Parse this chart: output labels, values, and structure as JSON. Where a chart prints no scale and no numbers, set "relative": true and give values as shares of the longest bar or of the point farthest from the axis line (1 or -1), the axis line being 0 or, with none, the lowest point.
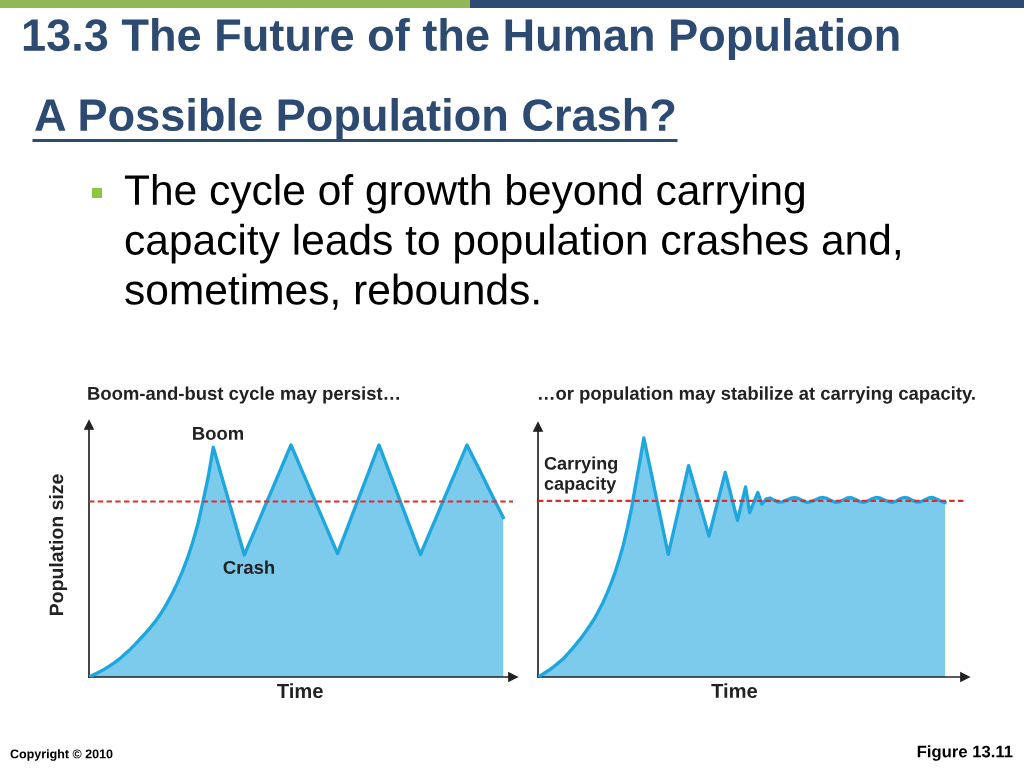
{
  "chart_data": [
    {
      "type": "other",
      "title": "13.3 The Future of the Human Population",
      "subtitle": "A Possible Population Crash?",
      "annotations": [
        "The cycle of growth beyond carrying\ncapacity leads to population crashes and,\nsometimes, rebounds.",
        "Copyright © 2010",
        "Figure 13.11"
      ]
    },
    {
      "type": "area",
      "title": "Boom-and-bust cycle may persist…",
      "xlabel": "Time",
      "ylabel": "Population size",
      "relative": true,
      "categories": [
        null,
        null,
        null,
        null,
        null,
        null,
        null,
        null,
        null,
        null,
        null,
        null,
        null,
        null,
        null,
        null,
        null,
        null,
        null,
        null,
        null,
        null,
        null,
        null,
        null,
        null,
        null,
        null,
        null,
        null,
        null,
        null,
        null,
        null,
        null,
        null,
        null,
        null,
        null,
        null,
        null,
        null,
        null,
        null,
        null,
        null,
        null,
        null,
        null,
        null,
        null,
        null,
        null,
        null,
        null,
        null,
        null,
        null,
        null,
        null,
        null,
        null,
        null,
        null,
        null,
        null,
        null,
        null,
        null,
        null,
        null,
        null,
        null,
        null,
        null,
        null,
        null,
        null,
        null,
        null,
        null
      ],
      "series": [
        {
          "color": "#1ea6df",
          "values": [
            0,
            0.011,
            0.022,
            0.034,
            0.048,
            0.063,
            0.08,
            0.1,
            0.12,
            0.143,
            0.167,
            0.191,
            0.217,
            0.245,
            0.278,
            0.315,
            0.356,
            0.402,
            0.453,
            0.511,
            0.579,
            0.657,
            0.755,
            0.86,
            0.99,
            0.913,
            0.835,
            0.758,
            0.681,
            0.603,
            0.526,
            0.579,
            0.631,
            0.684,
            0.737,
            0.789,
            0.842,
            0.895,
            0.947,
            1.0,
            0.948,
            0.896,
            0.844,
            0.792,
            0.74,
            0.688,
            0.636,
            0.584,
            0.532,
            0.591,
            0.649,
            0.708,
            0.766,
            0.825,
            0.883,
            0.942,
            1.0,
            0.941,
            0.882,
            0.823,
            0.764,
            0.705,
            0.646,
            0.587,
            0.528,
            0.58,
            0.633,
            0.685,
            0.738,
            0.79,
            0.843,
            0.895,
            0.948,
            1.0,
            0.955,
            0.911,
            0.866,
            0.821,
            0.776,
            0.732,
            0.687
          ]
        }
      ],
      "ref_lines": [
        {
          "axis": "y",
          "value": 0.756,
          "color": "#dd2c2c",
          "line_style": "dashed"
        }
      ],
      "annotations": [
        "Boom",
        "Crash"
      ]
    },
    {
      "type": "area",
      "title": "…or population may stabilize at carrying capacity.",
      "xlabel": "Time",
      "relative": true,
      "categories": [
        null,
        null,
        null,
        null,
        null,
        null,
        null,
        null,
        null,
        null,
        null,
        null,
        null,
        null,
        null,
        null,
        null,
        null,
        null,
        null,
        null,
        null,
        null,
        null,
        null,
        null,
        null,
        null,
        null,
        null,
        null,
        null,
        null,
        null,
        null,
        null,
        null,
        null,
        null,
        null,
        null,
        null,
        null,
        null,
        null,
        null,
        null,
        null,
        null,
        null,
        null,
        null,
        null,
        null,
        null,
        null,
        null,
        null,
        null,
        null,
        null,
        null,
        null,
        null,
        null,
        null,
        null,
        null,
        null,
        null,
        null,
        null,
        null,
        null,
        null,
        null,
        null,
        null,
        null,
        null,
        null,
        null,
        null,
        null,
        null,
        null,
        null,
        null,
        null,
        null,
        null,
        null,
        null,
        null,
        null,
        null,
        null,
        null,
        null,
        null,
        null
      ],
      "series": [
        {
          "color": "#1ea6df",
          "values": [
            0,
            0.01,
            0.021,
            0.032,
            0.045,
            0.059,
            0.073,
            0.091,
            0.11,
            0.13,
            0.151,
            0.173,
            0.197,
            0.222,
            0.248,
            0.28,
            0.313,
            0.352,
            0.394,
            0.441,
            0.495,
            0.555,
            0.628,
            0.708,
            0.805,
            0.9,
            1.0,
            0.919,
            0.838,
            0.756,
            0.675,
            0.594,
            0.513,
            0.587,
            0.661,
            0.736,
            0.81,
            0.884,
            0.825,
            0.766,
            0.708,
            0.649,
            0.59,
            0.657,
            0.723,
            0.79,
            0.856,
            0.789,
            0.722,
            0.655,
            0.725,
            0.795,
            0.688,
            0.73,
            0.772,
            0.723,
            0.744,
            0.749,
            0.74,
            0.732,
            0.733,
            0.739,
            0.747,
            0.751,
            0.747,
            0.738,
            0.731,
            0.733,
            0.74,
            0.748,
            0.751,
            0.747,
            0.738,
            0.731,
            0.733,
            0.741,
            0.749,
            0.75,
            0.743,
            0.734,
            0.731,
            0.736,
            0.745,
            0.751,
            0.749,
            0.741,
            0.734,
            0.731,
            0.736,
            0.746,
            0.751,
            0.748,
            0.739,
            0.732,
            0.733,
            0.741,
            0.749,
            0.751,
            0.744,
            0.735,
            0.73
          ]
        }
      ],
      "ref_lines": [
        {
          "axis": "y",
          "value": 0.737,
          "color": "#dd2c2c",
          "line_style": "dashed",
          "label": "Carrying\ncapacity"
        }
      ]
    }
  ]
}
